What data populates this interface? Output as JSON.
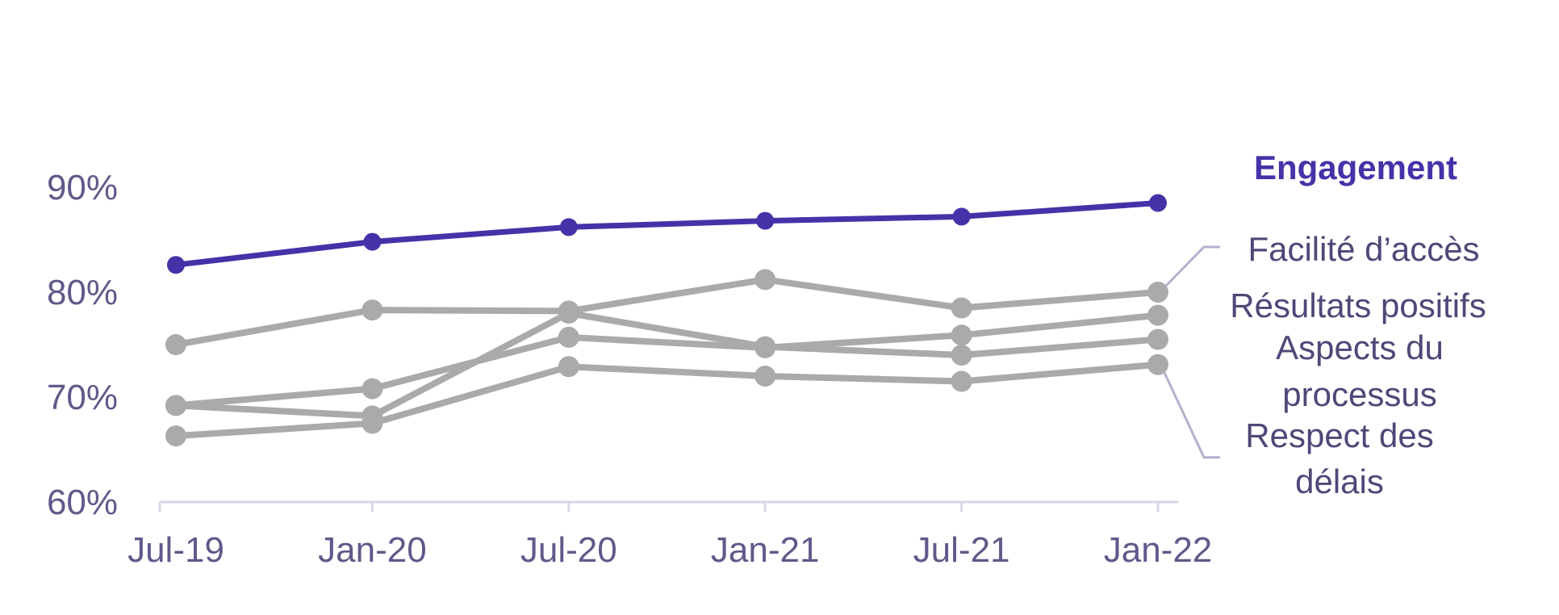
{
  "chart_data": {
    "type": "line",
    "categories": [
      "Jul-19",
      "Jan-20",
      "Jul-20",
      "Jan-21",
      "Jul-21",
      "Jan-22"
    ],
    "ylim": [
      60,
      100
    ],
    "yticks": [
      "60%",
      "70%",
      "80%",
      "90%"
    ],
    "ytick_values": [
      60,
      70,
      80,
      90
    ],
    "grid": false,
    "colors": {
      "highlight": "#4433a8",
      "muted": "#aaaaaa",
      "axis": "#d8d6e6",
      "leader": "#b4b0cc"
    },
    "series": [
      {
        "name": "Engagement",
        "values": [
          82.6,
          84.8,
          86.2,
          86.8,
          87.2,
          88.5
        ],
        "highlight": true
      },
      {
        "name": "Facilité d’accès",
        "values": [
          75.0,
          78.3,
          78.2,
          81.2,
          78.5,
          80.0
        ],
        "highlight": false
      },
      {
        "name": "Résultats positifs",
        "values": [
          69.2,
          70.8,
          75.7,
          74.7,
          75.9,
          77.8
        ],
        "highlight": false
      },
      {
        "name": "Aspects du processus",
        "values": [
          69.2,
          68.2,
          78.0,
          74.8,
          74.0,
          75.5
        ],
        "highlight": false
      },
      {
        "name": "Respect des délais",
        "values": [
          66.3,
          67.5,
          72.9,
          72.0,
          71.5,
          73.1
        ],
        "highlight": false
      }
    ],
    "labels": {
      "engagement": "Engagement",
      "facilite": "Facilité d’accès",
      "resultats": "Résultats positifs",
      "aspects_1": "Aspects du",
      "aspects_2": "processus",
      "respect_1": "Respect des",
      "respect_2": "délais"
    }
  }
}
